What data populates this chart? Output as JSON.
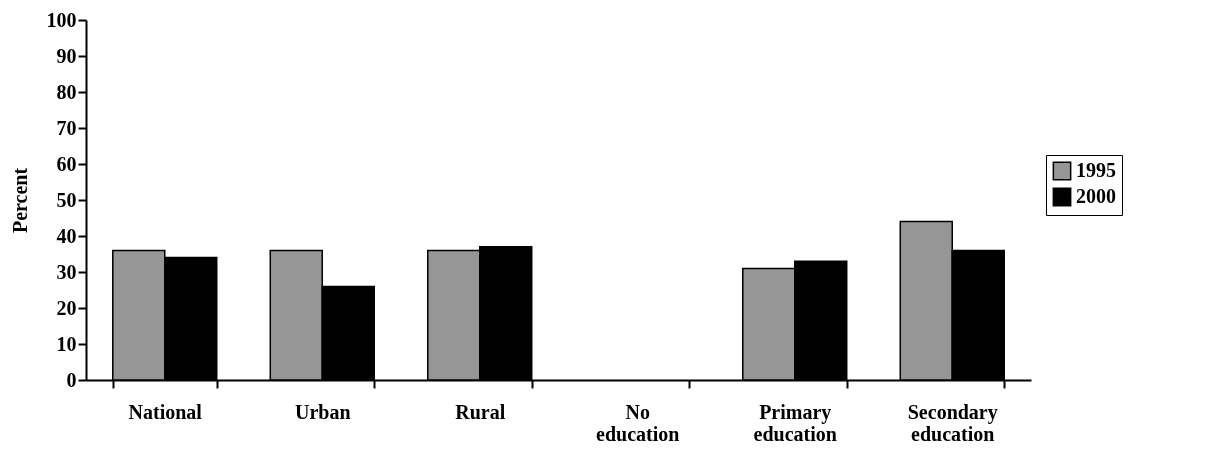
{
  "chart_data": {
    "type": "bar",
    "ylabel": "Percent",
    "categories": [
      "National",
      "Urban",
      "Rural",
      "No education",
      "Primary education",
      "Secondary education"
    ],
    "series": [
      {
        "name": "1995",
        "color": "#969696",
        "values": [
          36,
          36,
          36,
          null,
          31,
          44
        ]
      },
      {
        "name": "2000",
        "color": "#000000",
        "values": [
          34,
          26,
          37,
          null,
          33,
          36
        ]
      }
    ],
    "ylim": [
      0,
      100
    ],
    "yticks": [
      0,
      10,
      20,
      30,
      40,
      50,
      60,
      70,
      80,
      90,
      100
    ],
    "grid": false,
    "legend": "right"
  }
}
